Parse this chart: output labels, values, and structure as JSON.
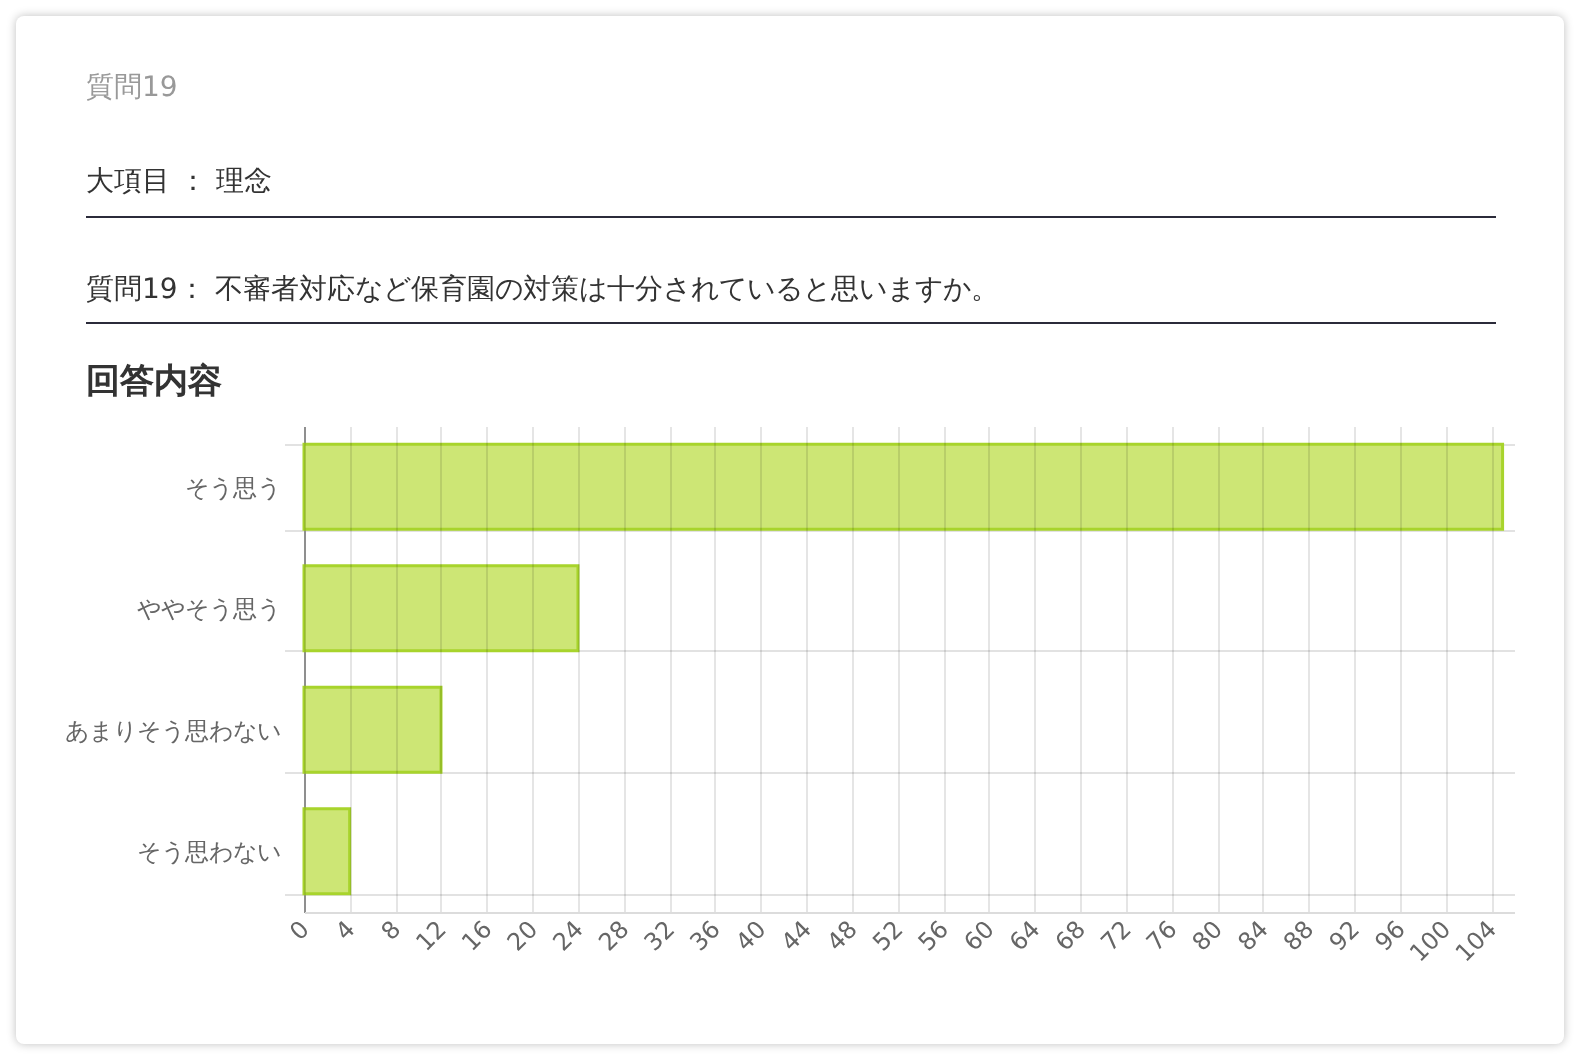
{
  "chart_data": {
    "type": "bar",
    "orientation": "horizontal",
    "title": "回答内容",
    "annotations": [
      "質問19",
      "大項目 ： 理念",
      "質問19： 不審者対応など保育園の対策は十分されていると思いますか。"
    ],
    "categories": [
      "そう思う",
      "ややそう思う",
      "あまりそう思わない",
      "そう思わない"
    ],
    "values": [
      105,
      24,
      12,
      4
    ],
    "color": "#cde675",
    "xlim": [
      0,
      106
    ],
    "xticks": [
      0,
      4,
      8,
      12,
      16,
      20,
      24,
      28,
      32,
      36,
      40,
      44,
      48,
      52,
      56,
      60,
      64,
      68,
      72,
      76,
      80,
      84,
      88,
      92,
      96,
      100,
      104
    ],
    "grid": true
  }
}
